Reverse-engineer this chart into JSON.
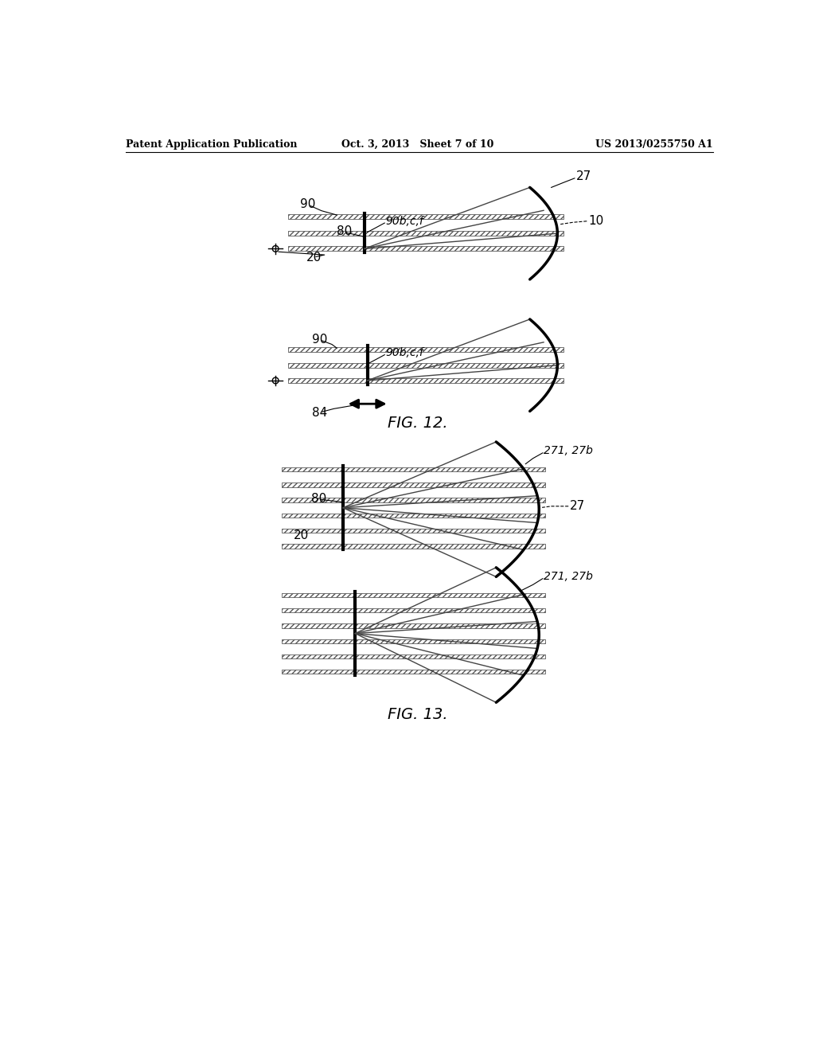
{
  "bg_color": "#ffffff",
  "text_color": "#000000",
  "header_left": "Patent Application Publication",
  "header_mid": "Oct. 3, 2013   Sheet 7 of 10",
  "header_right": "US 2013/0255750 A1",
  "fig12_label": "FIG. 12.",
  "fig13_label": "FIG. 13.",
  "line_color": "#000000"
}
